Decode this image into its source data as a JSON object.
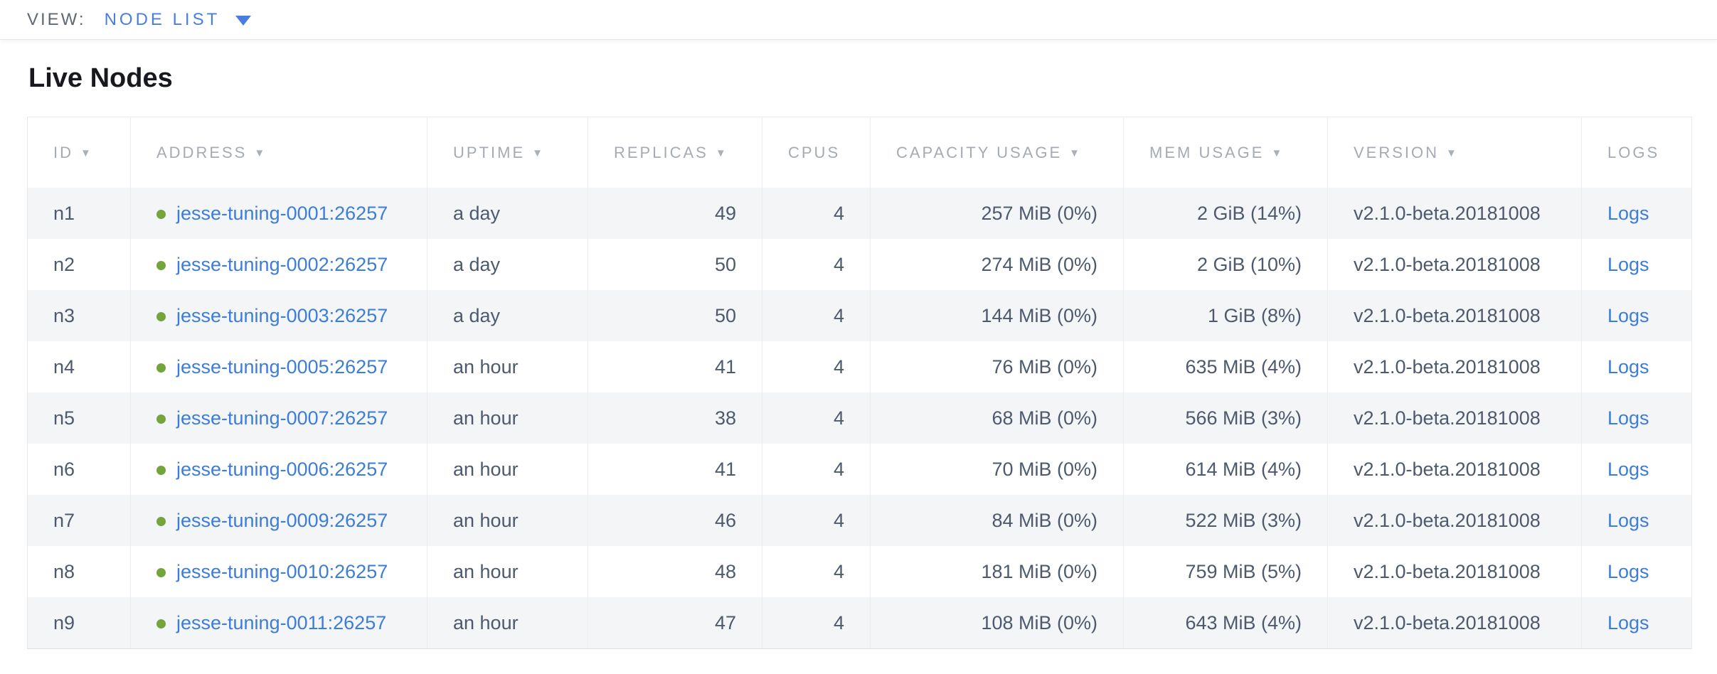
{
  "topbar": {
    "view_label": "VIEW:",
    "selected_view": "NODE LIST"
  },
  "title": "Live Nodes",
  "colors": {
    "accent_blue": "#4a7de2",
    "link_blue": "#3c7dda",
    "healthy_green": "#73a53c",
    "header_gray": "#a4abb3",
    "cell_text": "#4d5a6e",
    "row_stripe": "#f4f5f7"
  },
  "table": {
    "sort_indicator": "▼",
    "columns": [
      {
        "key": "id",
        "label": "ID",
        "sortable": true
      },
      {
        "key": "address",
        "label": "ADDRESS",
        "sortable": true
      },
      {
        "key": "uptime",
        "label": "UPTIME",
        "sortable": true
      },
      {
        "key": "replicas",
        "label": "REPLICAS",
        "sortable": true
      },
      {
        "key": "cpus",
        "label": "CPUS",
        "sortable": false
      },
      {
        "key": "capacity",
        "label": "CAPACITY USAGE",
        "sortable": true
      },
      {
        "key": "mem",
        "label": "MEM USAGE",
        "sortable": true
      },
      {
        "key": "version",
        "label": "VERSION",
        "sortable": true
      },
      {
        "key": "logs",
        "label": "LOGS",
        "sortable": false
      }
    ],
    "rows": [
      {
        "id": "n1",
        "status": "healthy",
        "address": "jesse-tuning-0001:26257",
        "uptime": "a day",
        "replicas": "49",
        "cpus": "4",
        "capacity": "257 MiB (0%)",
        "mem": "2 GiB (14%)",
        "version": "v2.1.0-beta.20181008",
        "logs": "Logs"
      },
      {
        "id": "n2",
        "status": "healthy",
        "address": "jesse-tuning-0002:26257",
        "uptime": "a day",
        "replicas": "50",
        "cpus": "4",
        "capacity": "274 MiB (0%)",
        "mem": "2 GiB (10%)",
        "version": "v2.1.0-beta.20181008",
        "logs": "Logs"
      },
      {
        "id": "n3",
        "status": "healthy",
        "address": "jesse-tuning-0003:26257",
        "uptime": "a day",
        "replicas": "50",
        "cpus": "4",
        "capacity": "144 MiB (0%)",
        "mem": "1 GiB (8%)",
        "version": "v2.1.0-beta.20181008",
        "logs": "Logs"
      },
      {
        "id": "n4",
        "status": "healthy",
        "address": "jesse-tuning-0005:26257",
        "uptime": "an hour",
        "replicas": "41",
        "cpus": "4",
        "capacity": "76 MiB (0%)",
        "mem": "635 MiB (4%)",
        "version": "v2.1.0-beta.20181008",
        "logs": "Logs"
      },
      {
        "id": "n5",
        "status": "healthy",
        "address": "jesse-tuning-0007:26257",
        "uptime": "an hour",
        "replicas": "38",
        "cpus": "4",
        "capacity": "68 MiB (0%)",
        "mem": "566 MiB (3%)",
        "version": "v2.1.0-beta.20181008",
        "logs": "Logs"
      },
      {
        "id": "n6",
        "status": "healthy",
        "address": "jesse-tuning-0006:26257",
        "uptime": "an hour",
        "replicas": "41",
        "cpus": "4",
        "capacity": "70 MiB (0%)",
        "mem": "614 MiB (4%)",
        "version": "v2.1.0-beta.20181008",
        "logs": "Logs"
      },
      {
        "id": "n7",
        "status": "healthy",
        "address": "jesse-tuning-0009:26257",
        "uptime": "an hour",
        "replicas": "46",
        "cpus": "4",
        "capacity": "84 MiB (0%)",
        "mem": "522 MiB (3%)",
        "version": "v2.1.0-beta.20181008",
        "logs": "Logs"
      },
      {
        "id": "n8",
        "status": "healthy",
        "address": "jesse-tuning-0010:26257",
        "uptime": "an hour",
        "replicas": "48",
        "cpus": "4",
        "capacity": "181 MiB (0%)",
        "mem": "759 MiB (5%)",
        "version": "v2.1.0-beta.20181008",
        "logs": "Logs"
      },
      {
        "id": "n9",
        "status": "healthy",
        "address": "jesse-tuning-0011:26257",
        "uptime": "an hour",
        "replicas": "47",
        "cpus": "4",
        "capacity": "108 MiB (0%)",
        "mem": "643 MiB (4%)",
        "version": "v2.1.0-beta.20181008",
        "logs": "Logs"
      }
    ]
  }
}
